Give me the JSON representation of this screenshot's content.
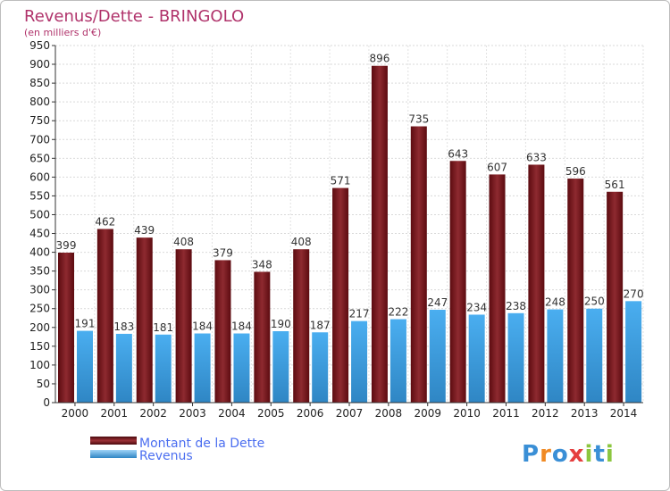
{
  "chart_data": {
    "type": "bar",
    "title": "Revenus/Dette - BRINGOLO",
    "subtitle": "(en milliers d'€)",
    "categories": [
      "2000",
      "2001",
      "2002",
      "2003",
      "2004",
      "2005",
      "2006",
      "2007",
      "2008",
      "2009",
      "2010",
      "2011",
      "2012",
      "2013",
      "2014"
    ],
    "series": [
      {
        "name": "Montant de la Dette",
        "color": "#7a1a1f",
        "values": [
          399,
          462,
          439,
          408,
          379,
          348,
          408,
          571,
          896,
          735,
          643,
          607,
          633,
          596,
          561
        ]
      },
      {
        "name": "Revenus",
        "color": "#3a9ad9",
        "values": [
          191,
          183,
          181,
          184,
          184,
          190,
          187,
          217,
          222,
          247,
          234,
          238,
          248,
          250,
          270
        ]
      }
    ],
    "ylim": [
      0,
      950
    ],
    "yticks": [
      0,
      50,
      100,
      150,
      200,
      250,
      300,
      350,
      400,
      450,
      500,
      550,
      600,
      650,
      700,
      750,
      800,
      850,
      900,
      950
    ],
    "grid": true,
    "legend": "bottom-left"
  },
  "logo": {
    "text": "Proxiti"
  }
}
